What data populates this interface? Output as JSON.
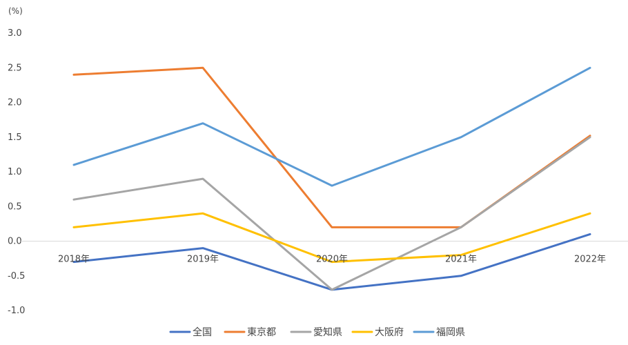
{
  "chart_data": {
    "type": "line",
    "unit_label": "(%)",
    "categories": [
      "2018年",
      "2019年",
      "2020年",
      "2021年",
      "2022年"
    ],
    "y_ticks": [
      "3.0",
      "2.5",
      "2.0",
      "1.5",
      "1.0",
      "0.5",
      "0.0",
      "-0.5",
      "-1.0"
    ],
    "ylim": [
      -1.0,
      3.0
    ],
    "grid": false,
    "legend_position": "bottom",
    "series": [
      {
        "name": "全国",
        "color": "#4472C4",
        "values": [
          -0.3,
          -0.1,
          -0.7,
          -0.5,
          0.1
        ]
      },
      {
        "name": "東京都",
        "color": "#ED7D31",
        "values": [
          2.4,
          2.5,
          0.2,
          0.2,
          1.52
        ]
      },
      {
        "name": "愛知県",
        "color": "#A5A5A5",
        "values": [
          0.6,
          0.9,
          -0.7,
          0.2,
          1.5
        ]
      },
      {
        "name": "大阪府",
        "color": "#FFC000",
        "values": [
          0.2,
          0.4,
          -0.3,
          -0.2,
          0.4
        ]
      },
      {
        "name": "福岡県",
        "color": "#5B9BD5",
        "values": [
          1.1,
          1.7,
          0.8,
          1.5,
          2.5
        ]
      }
    ]
  }
}
